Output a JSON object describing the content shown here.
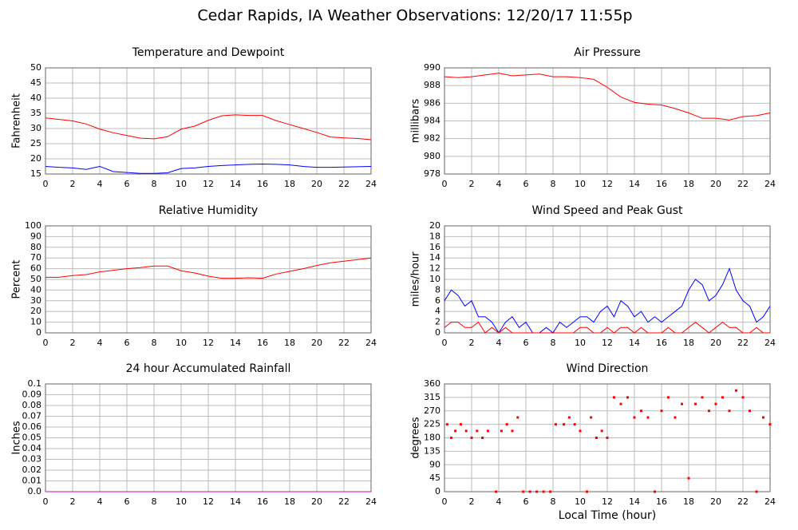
{
  "title": "Cedar Rapids, IA Weather Observations: 12/20/17 11:55p",
  "chart_data": [
    {
      "type": "line",
      "title": "Temperature and Dewpoint",
      "ylabel": "Fahrenheit",
      "grid": true,
      "xlim": [
        0,
        24
      ],
      "xticks": [
        0,
        2,
        4,
        6,
        8,
        10,
        12,
        14,
        16,
        18,
        20,
        22,
        24
      ],
      "ylim": [
        15,
        50
      ],
      "yticks": [
        15,
        20,
        25,
        30,
        35,
        40,
        45,
        50
      ],
      "x": [
        0,
        1,
        2,
        3,
        4,
        5,
        6,
        7,
        8,
        9,
        10,
        11,
        12,
        13,
        14,
        15,
        16,
        17,
        18,
        19,
        20,
        21,
        22,
        23,
        24
      ],
      "series": [
        {
          "color": "#ff0000",
          "values": [
            33.5,
            33,
            32.5,
            31.5,
            29.8,
            28.6,
            27.7,
            26.8,
            26.6,
            27.3,
            29.8,
            30.8,
            32.7,
            34.2,
            34.5,
            34.3,
            34.3,
            32.6,
            31.3,
            30,
            28.7,
            27.2,
            26.9,
            26.7,
            26.3
          ]
        },
        {
          "color": "#0000ff",
          "values": [
            17.5,
            17.2,
            17,
            16.5,
            17.5,
            15.8,
            15.5,
            15.2,
            15.2,
            15.4,
            16.8,
            17,
            17.5,
            17.8,
            18,
            18.2,
            18.3,
            18.2,
            18,
            17.5,
            17.2,
            17.2,
            17.3,
            17.4,
            17.5
          ]
        }
      ]
    },
    {
      "type": "line",
      "title": "Air Pressure",
      "ylabel": "millibars",
      "grid": true,
      "xlim": [
        0,
        24
      ],
      "xticks": [
        0,
        2,
        4,
        6,
        8,
        10,
        12,
        14,
        16,
        18,
        20,
        22,
        24
      ],
      "ylim": [
        978,
        990
      ],
      "yticks": [
        978,
        980,
        982,
        984,
        986,
        988,
        990
      ],
      "x": [
        0,
        1,
        2,
        3,
        4,
        5,
        6,
        7,
        8,
        9,
        10,
        11,
        12,
        13,
        14,
        15,
        16,
        17,
        18,
        19,
        20,
        21,
        22,
        23,
        24
      ],
      "series": [
        {
          "color": "#ff0000",
          "values": [
            989,
            988.9,
            989,
            989.2,
            989.4,
            989.1,
            989.2,
            989.3,
            989,
            989,
            988.9,
            988.7,
            987.8,
            986.7,
            986.1,
            985.9,
            985.8,
            985.4,
            984.9,
            984.3,
            984.3,
            984.1,
            984.5,
            984.6,
            984.9
          ]
        }
      ]
    },
    {
      "type": "line",
      "title": "Relative Humidity",
      "ylabel": "Percent",
      "grid": true,
      "xlim": [
        0,
        24
      ],
      "xticks": [
        0,
        2,
        4,
        6,
        8,
        10,
        12,
        14,
        16,
        18,
        20,
        22,
        24
      ],
      "ylim": [
        0,
        100
      ],
      "yticks": [
        0,
        10,
        20,
        30,
        40,
        50,
        60,
        70,
        80,
        90,
        100
      ],
      "x": [
        0,
        1,
        2,
        3,
        4,
        5,
        6,
        7,
        8,
        9,
        10,
        11,
        12,
        13,
        14,
        15,
        16,
        17,
        18,
        19,
        20,
        21,
        22,
        23,
        24
      ],
      "series": [
        {
          "color": "#ff0000",
          "values": [
            52,
            52,
            53.5,
            54.5,
            57,
            58.5,
            60,
            61,
            62.5,
            62.5,
            58,
            56,
            53,
            51,
            51,
            51.5,
            51,
            55,
            57.5,
            60,
            63,
            65.5,
            67,
            68.5,
            70
          ]
        }
      ]
    },
    {
      "type": "line",
      "title": "Wind Speed and Peak Gust",
      "ylabel": "miles/hour",
      "grid": true,
      "xlim": [
        0,
        24
      ],
      "xticks": [
        0,
        2,
        4,
        6,
        8,
        10,
        12,
        14,
        16,
        18,
        20,
        22,
        24
      ],
      "ylim": [
        0,
        20
      ],
      "yticks": [
        0,
        2,
        4,
        6,
        8,
        10,
        12,
        14,
        16,
        18,
        20
      ],
      "x": [
        0,
        0.5,
        1,
        1.5,
        2,
        2.5,
        3,
        3.5,
        4,
        4.5,
        5,
        5.5,
        6,
        6.5,
        7,
        7.5,
        8,
        8.5,
        9,
        9.5,
        10,
        10.5,
        11,
        11.5,
        12,
        12.5,
        13,
        13.5,
        14,
        14.5,
        15,
        15.5,
        16,
        16.5,
        17,
        17.5,
        18,
        18.5,
        19,
        19.5,
        20,
        20.5,
        21,
        21.5,
        22,
        22.5,
        23,
        23.5,
        24
      ],
      "series": [
        {
          "color": "#0000ff",
          "values": [
            6,
            8,
            7,
            5,
            6,
            3,
            3,
            2,
            0,
            2,
            3,
            1,
            2,
            0,
            0,
            1,
            0,
            2,
            1,
            2,
            3,
            3,
            2,
            4,
            5,
            3,
            6,
            5,
            3,
            4,
            2,
            3,
            2,
            3,
            4,
            5,
            8,
            10,
            9,
            6,
            7,
            9,
            12,
            8,
            6,
            5,
            2,
            3,
            5
          ]
        },
        {
          "color": "#ff0000",
          "values": [
            1,
            2,
            2,
            1,
            1,
            2,
            0,
            1,
            0,
            1,
            0,
            0,
            0,
            0,
            0,
            0,
            0,
            0,
            0,
            0,
            1,
            1,
            0,
            0,
            1,
            0,
            1,
            1,
            0,
            1,
            0,
            0,
            0,
            1,
            0,
            0,
            1,
            2,
            1,
            0,
            1,
            2,
            1,
            1,
            0,
            0,
            1,
            0,
            0
          ]
        }
      ]
    },
    {
      "type": "line",
      "title": "24 hour Accumulated Rainfall",
      "ylabel": "Inches",
      "grid": true,
      "xlim": [
        0,
        24
      ],
      "xticks": [
        0,
        2,
        4,
        6,
        8,
        10,
        12,
        14,
        16,
        18,
        20,
        22,
        24
      ],
      "ylim": [
        0,
        0.1
      ],
      "yticks": [
        {
          "value": 0,
          "label": "0.0"
        },
        0.01,
        0.02,
        0.03,
        0.04,
        0.05,
        0.06,
        0.07,
        0.08,
        0.09,
        0.1
      ],
      "x": [
        0,
        24
      ],
      "series": [
        {
          "color": "#cc00cc",
          "values": [
            0,
            0
          ]
        }
      ]
    },
    {
      "type": "scatter",
      "title": "Wind Direction",
      "ylabel": "degrees",
      "xlabel": "Local Time (hour)",
      "grid": true,
      "xlim": [
        0,
        24
      ],
      "xticks": [
        0,
        2,
        4,
        6,
        8,
        10,
        12,
        14,
        16,
        18,
        20,
        22,
        24
      ],
      "ylim": [
        0,
        360
      ],
      "yticks": [
        0,
        45,
        90,
        135,
        180,
        225,
        270,
        315,
        360
      ],
      "x": [
        0.2,
        0.5,
        0.8,
        1.2,
        1.6,
        2,
        2.4,
        2.8,
        3.2,
        3.8,
        4.2,
        4.6,
        5,
        5.4,
        5.8,
        6.3,
        6.8,
        7.3,
        7.8,
        8.2,
        8.8,
        9.2,
        9.6,
        10,
        10.5,
        10.8,
        11.2,
        11.6,
        12,
        12.5,
        13,
        13.5,
        14,
        14.5,
        15,
        15.5,
        16,
        16.5,
        17,
        17.5,
        18,
        18.5,
        19,
        19.5,
        20,
        20.5,
        21,
        21.5,
        22,
        22.5,
        23,
        23.5,
        24
      ],
      "series": [
        {
          "color": "#ff0000",
          "values": [
            225,
            180,
            203,
            225,
            203,
            180,
            203,
            180,
            203,
            0,
            203,
            225,
            203,
            248,
            0,
            0,
            0,
            0,
            0,
            225,
            225,
            248,
            225,
            203,
            0,
            248,
            180,
            203,
            180,
            315,
            293,
            315,
            248,
            270,
            248,
            0,
            270,
            315,
            248,
            293,
            45,
            293,
            315,
            270,
            293,
            315,
            270,
            338,
            315,
            270,
            0,
            248,
            225
          ]
        }
      ]
    }
  ]
}
